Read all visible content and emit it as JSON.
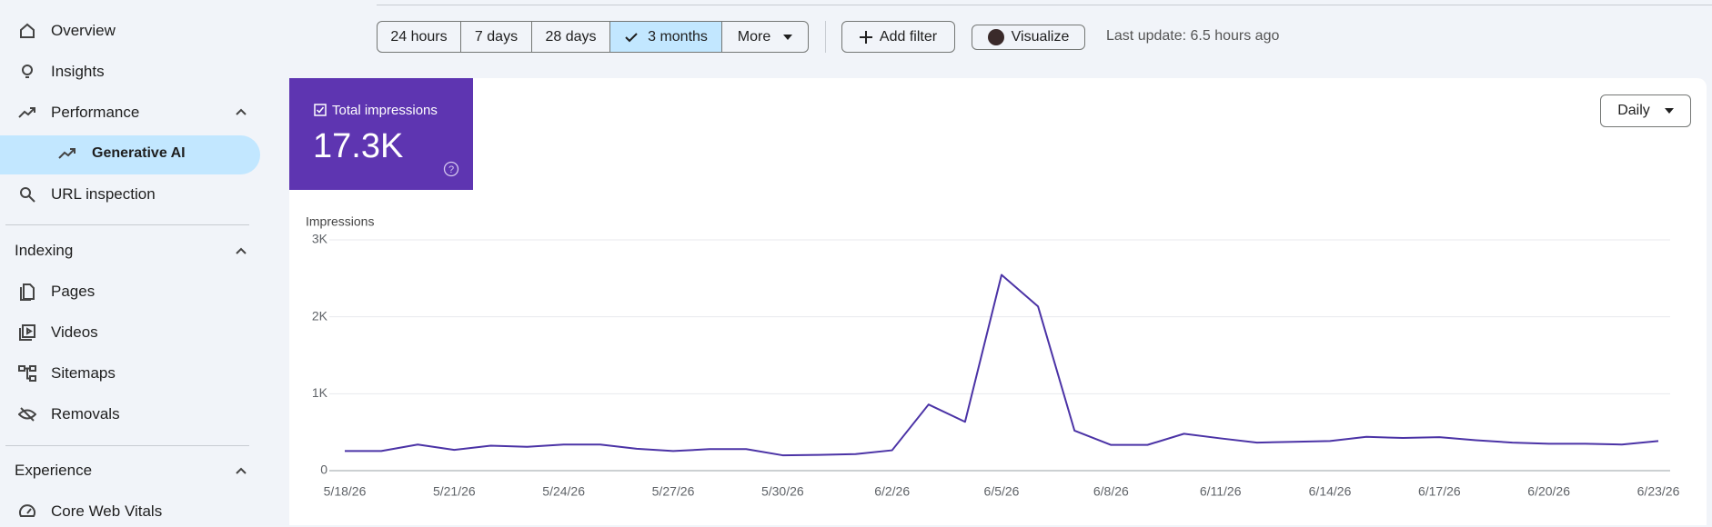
{
  "sidebar": {
    "top": [
      "Overview",
      "Insights",
      "Performance",
      "Generative AI",
      "URL inspection"
    ],
    "indexing": {
      "title": "Indexing",
      "items": [
        "Pages",
        "Videos",
        "Sitemaps",
        "Removals"
      ]
    },
    "experience": {
      "title": "Experience",
      "items": [
        "Core Web Vitals"
      ]
    }
  },
  "toolbar": {
    "ranges": [
      "24 hours",
      "7 days",
      "28 days",
      "3 months",
      "More"
    ],
    "add_filter": "Add filter",
    "visualize": "Visualize",
    "last_update": "Last update: 6.5 hours ago"
  },
  "granularity": "Daily",
  "chart_data": {
    "type": "line",
    "y_label": "Impressions",
    "metric_value": "17.3K",
    "categories": [
      "5/18/26",
      null,
      null,
      "5/21/26",
      null,
      null,
      "5/24/26",
      null,
      null,
      "5/27/26",
      null,
      null,
      "5/30/26",
      null,
      null,
      "6/2/26",
      null,
      null,
      "6/5/26",
      null,
      null,
      "6/8/26",
      null,
      null,
      "6/11/26",
      null,
      null,
      "6/14/26",
      null,
      null,
      "6/17/26",
      null,
      null,
      "6/20/26",
      null,
      null,
      "6/23/26"
    ],
    "series": [
      {
        "name": "Total impressions",
        "color": "#4b33a6",
        "values": [
          255,
          255,
          340,
          270,
          325,
          310,
          340,
          340,
          285,
          255,
          280,
          280,
          200,
          205,
          215,
          265,
          860,
          635,
          2545,
          2135,
          520,
          335,
          335,
          480,
          420,
          365,
          375,
          385,
          440,
          425,
          435,
          395,
          365,
          350,
          350,
          340,
          385
        ]
      }
    ],
    "ylim": [
      0,
      3000
    ],
    "yticks": [
      0,
      {
        "value": 1000,
        "label": "1K"
      },
      {
        "value": 2000,
        "label": "2K"
      },
      {
        "value": 3000,
        "label": "3K"
      }
    ],
    "grid": true
  }
}
